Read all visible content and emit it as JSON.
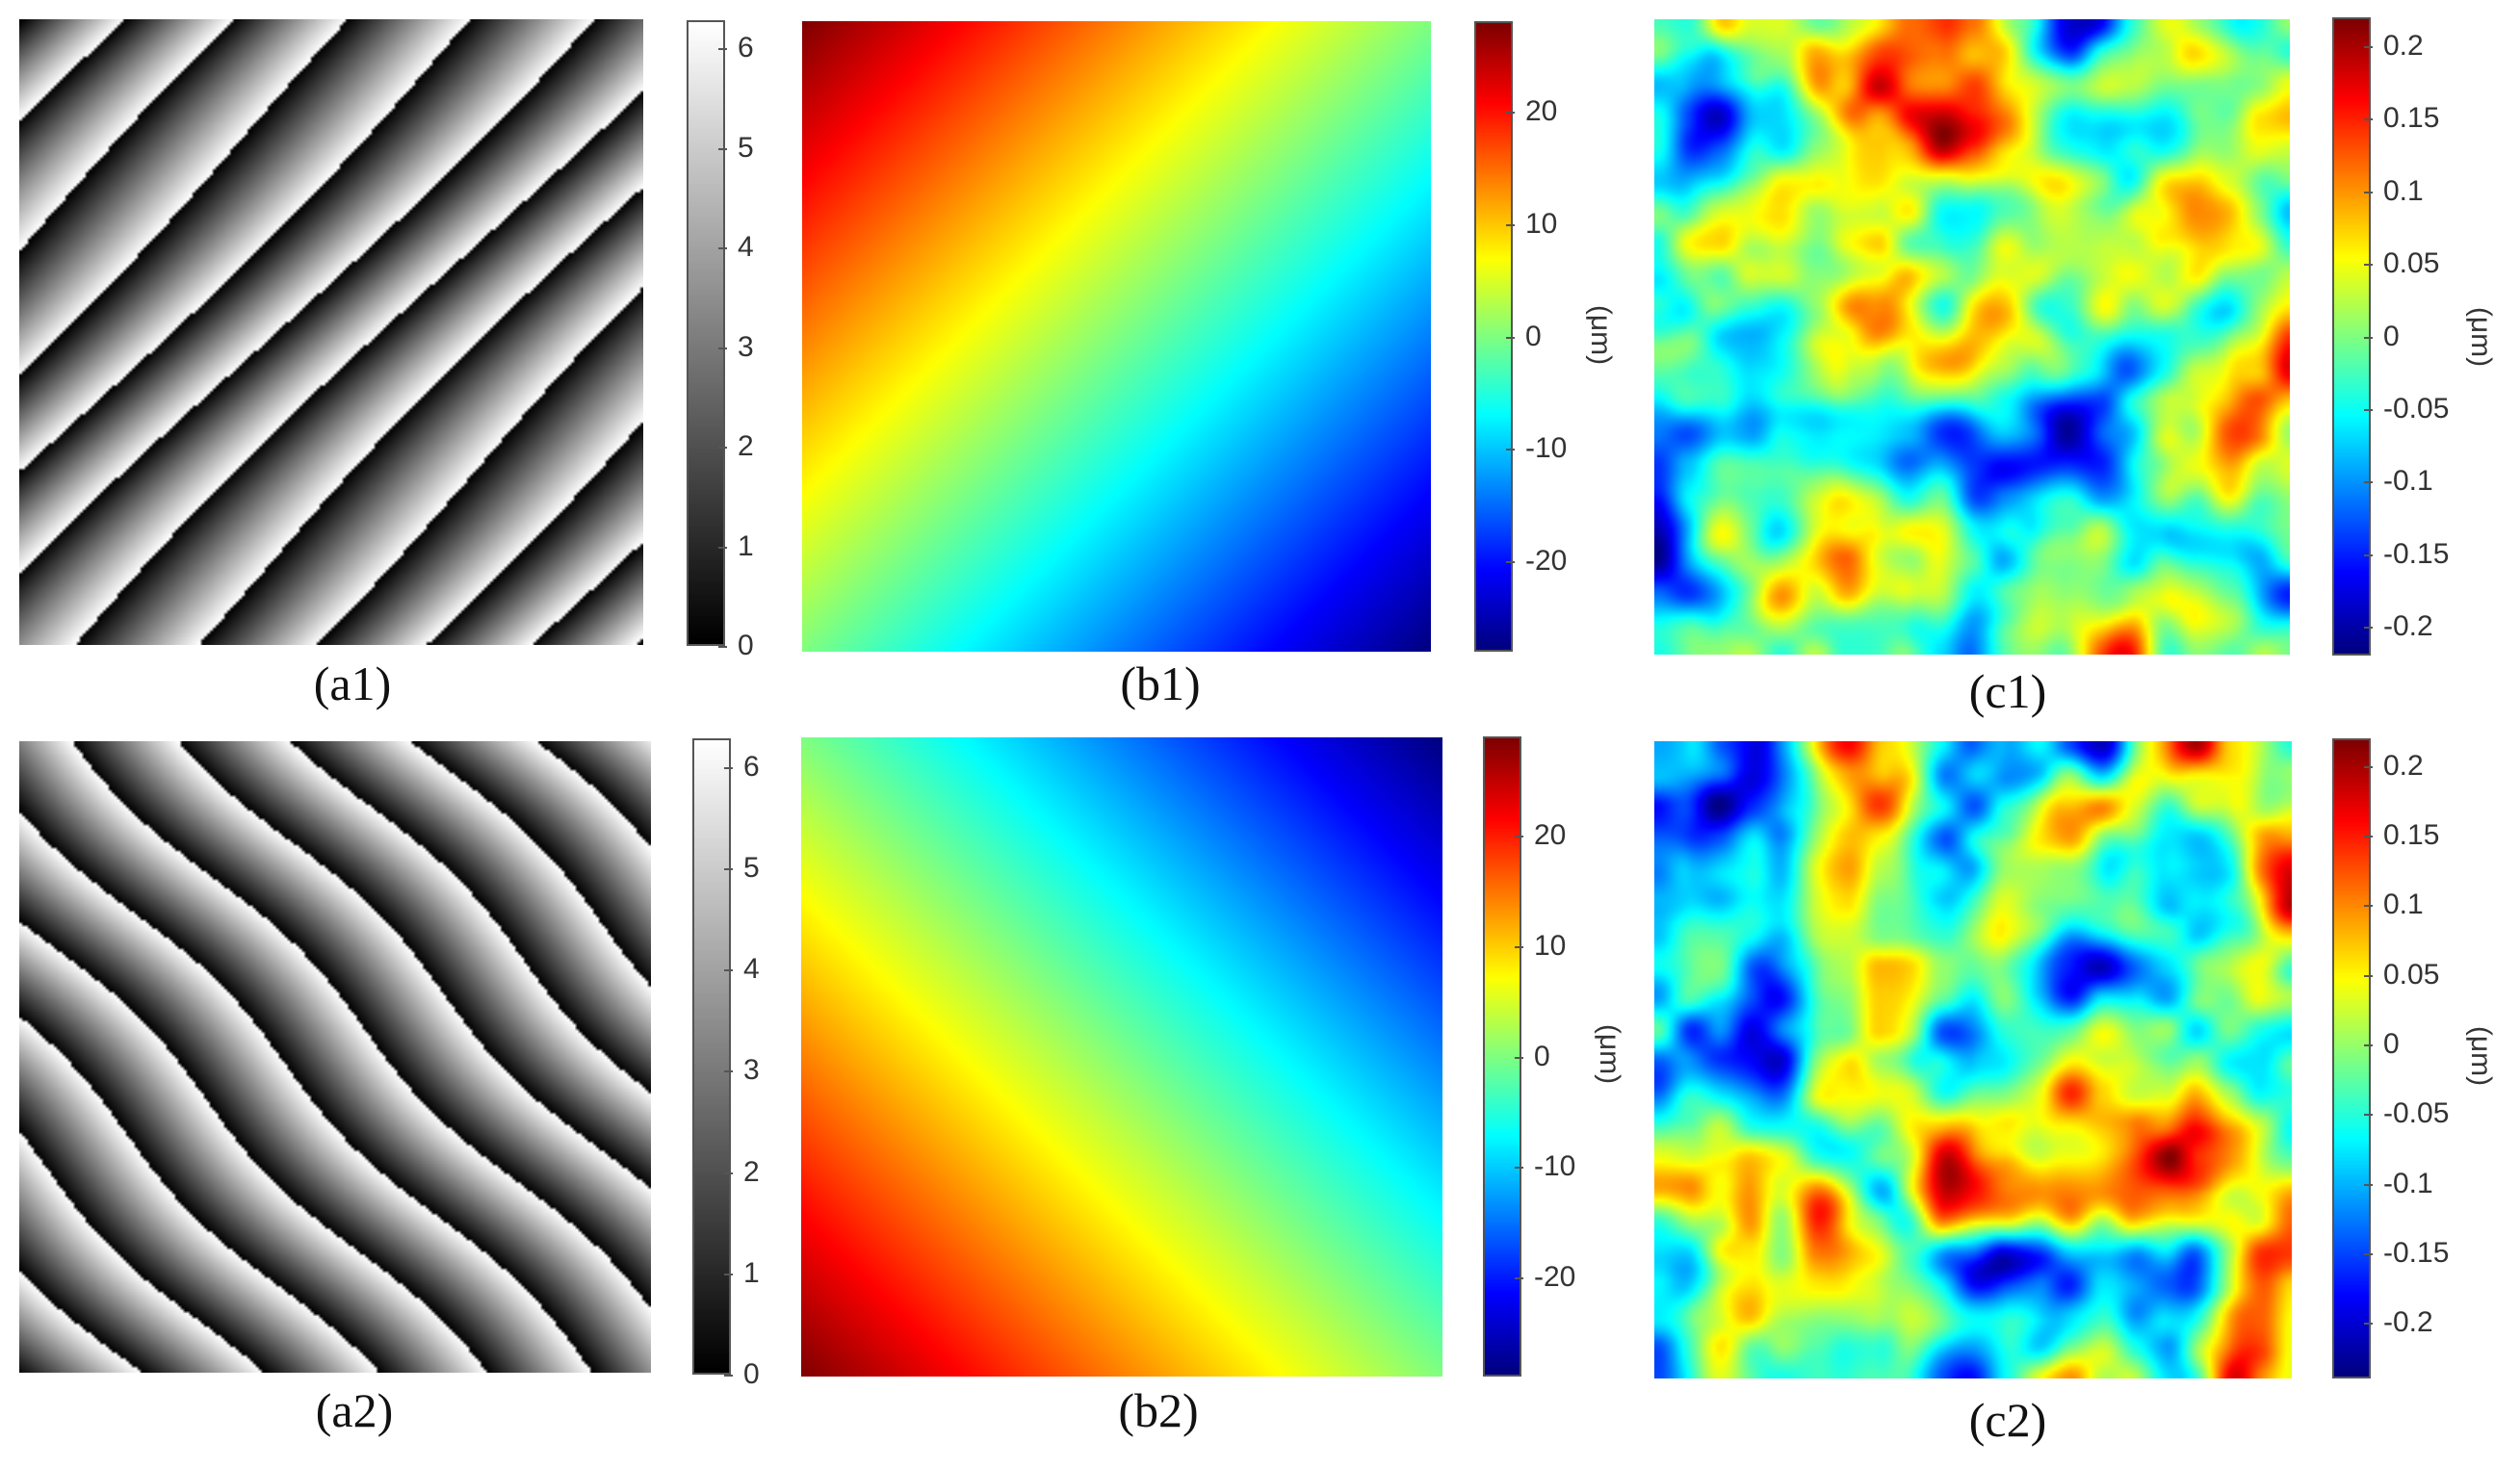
{
  "captions": {
    "a1": "(a1)",
    "b1": "(b1)",
    "c1": "(c1)",
    "a2": "(a2)",
    "b2": "(b2)",
    "c2": "(c2)"
  },
  "colorbars": {
    "a1": {
      "colormap": "gray",
      "ticks": [
        "6",
        "5",
        "4",
        "3",
        "2",
        "1",
        "0"
      ],
      "tick_values": [
        6,
        5,
        4,
        3,
        2,
        1,
        0
      ],
      "min": 0,
      "max": 6.2832,
      "unit": ""
    },
    "a2": {
      "colormap": "gray",
      "ticks": [
        "6",
        "5",
        "4",
        "3",
        "2",
        "1",
        "0"
      ],
      "tick_values": [
        6,
        5,
        4,
        3,
        2,
        1,
        0
      ],
      "min": 0,
      "max": 6.2832,
      "unit": ""
    },
    "b1": {
      "colormap": "jet",
      "ticks": [
        "20",
        "10",
        "0",
        "-10",
        "-20"
      ],
      "tick_values": [
        20,
        10,
        0,
        -10,
        -20
      ],
      "min": -28,
      "max": 28,
      "unit": "(μm)"
    },
    "b2": {
      "colormap": "jet",
      "ticks": [
        "20",
        "10",
        "0",
        "-10",
        "-20"
      ],
      "tick_values": [
        20,
        10,
        0,
        -10,
        -20
      ],
      "min": -29,
      "max": 29,
      "unit": "(μm)"
    },
    "c1": {
      "colormap": "jet",
      "ticks": [
        "0.2",
        "0.15",
        "0.1",
        "0.05",
        "0",
        "-0.05",
        "-0.1",
        "-0.15",
        "-0.2"
      ],
      "tick_values": [
        0.2,
        0.15,
        0.1,
        0.05,
        0,
        -0.05,
        -0.1,
        -0.15,
        -0.2
      ],
      "min": -0.22,
      "max": 0.22,
      "unit": "(μm)"
    },
    "c2": {
      "colormap": "jet",
      "ticks": [
        "0.2",
        "0.15",
        "0.1",
        "0.05",
        "0",
        "-0.05",
        "-0.1",
        "-0.15",
        "-0.2"
      ],
      "tick_values": [
        0.2,
        0.15,
        0.1,
        0.05,
        0,
        -0.05,
        -0.1,
        -0.15,
        -0.2
      ],
      "min": -0.24,
      "max": 0.22,
      "unit": "(μm)"
    }
  },
  "maps": {
    "a1": {
      "kind": "wrapped_phase",
      "fringe_direction": "rising diagonal",
      "fringe_count": 11,
      "colormap": "gray"
    },
    "a2": {
      "kind": "wrapped_phase",
      "fringe_direction": "falling diagonal",
      "fringe_count": 11,
      "colormap": "gray"
    },
    "b1": {
      "kind": "tilt_plane",
      "max_corner": "top-left",
      "min_corner": "bottom-right",
      "colormap": "jet"
    },
    "b2": {
      "kind": "tilt_plane",
      "max_corner": "bottom-left",
      "min_corner": "top-right",
      "colormap": "jet"
    },
    "c1": {
      "kind": "residual_surface",
      "colormap": "jet",
      "seed": 7
    },
    "c2": {
      "kind": "residual_surface",
      "colormap": "jet",
      "seed": 19
    }
  },
  "colors": {
    "cbar_border": "#555555",
    "text": "#333333"
  }
}
